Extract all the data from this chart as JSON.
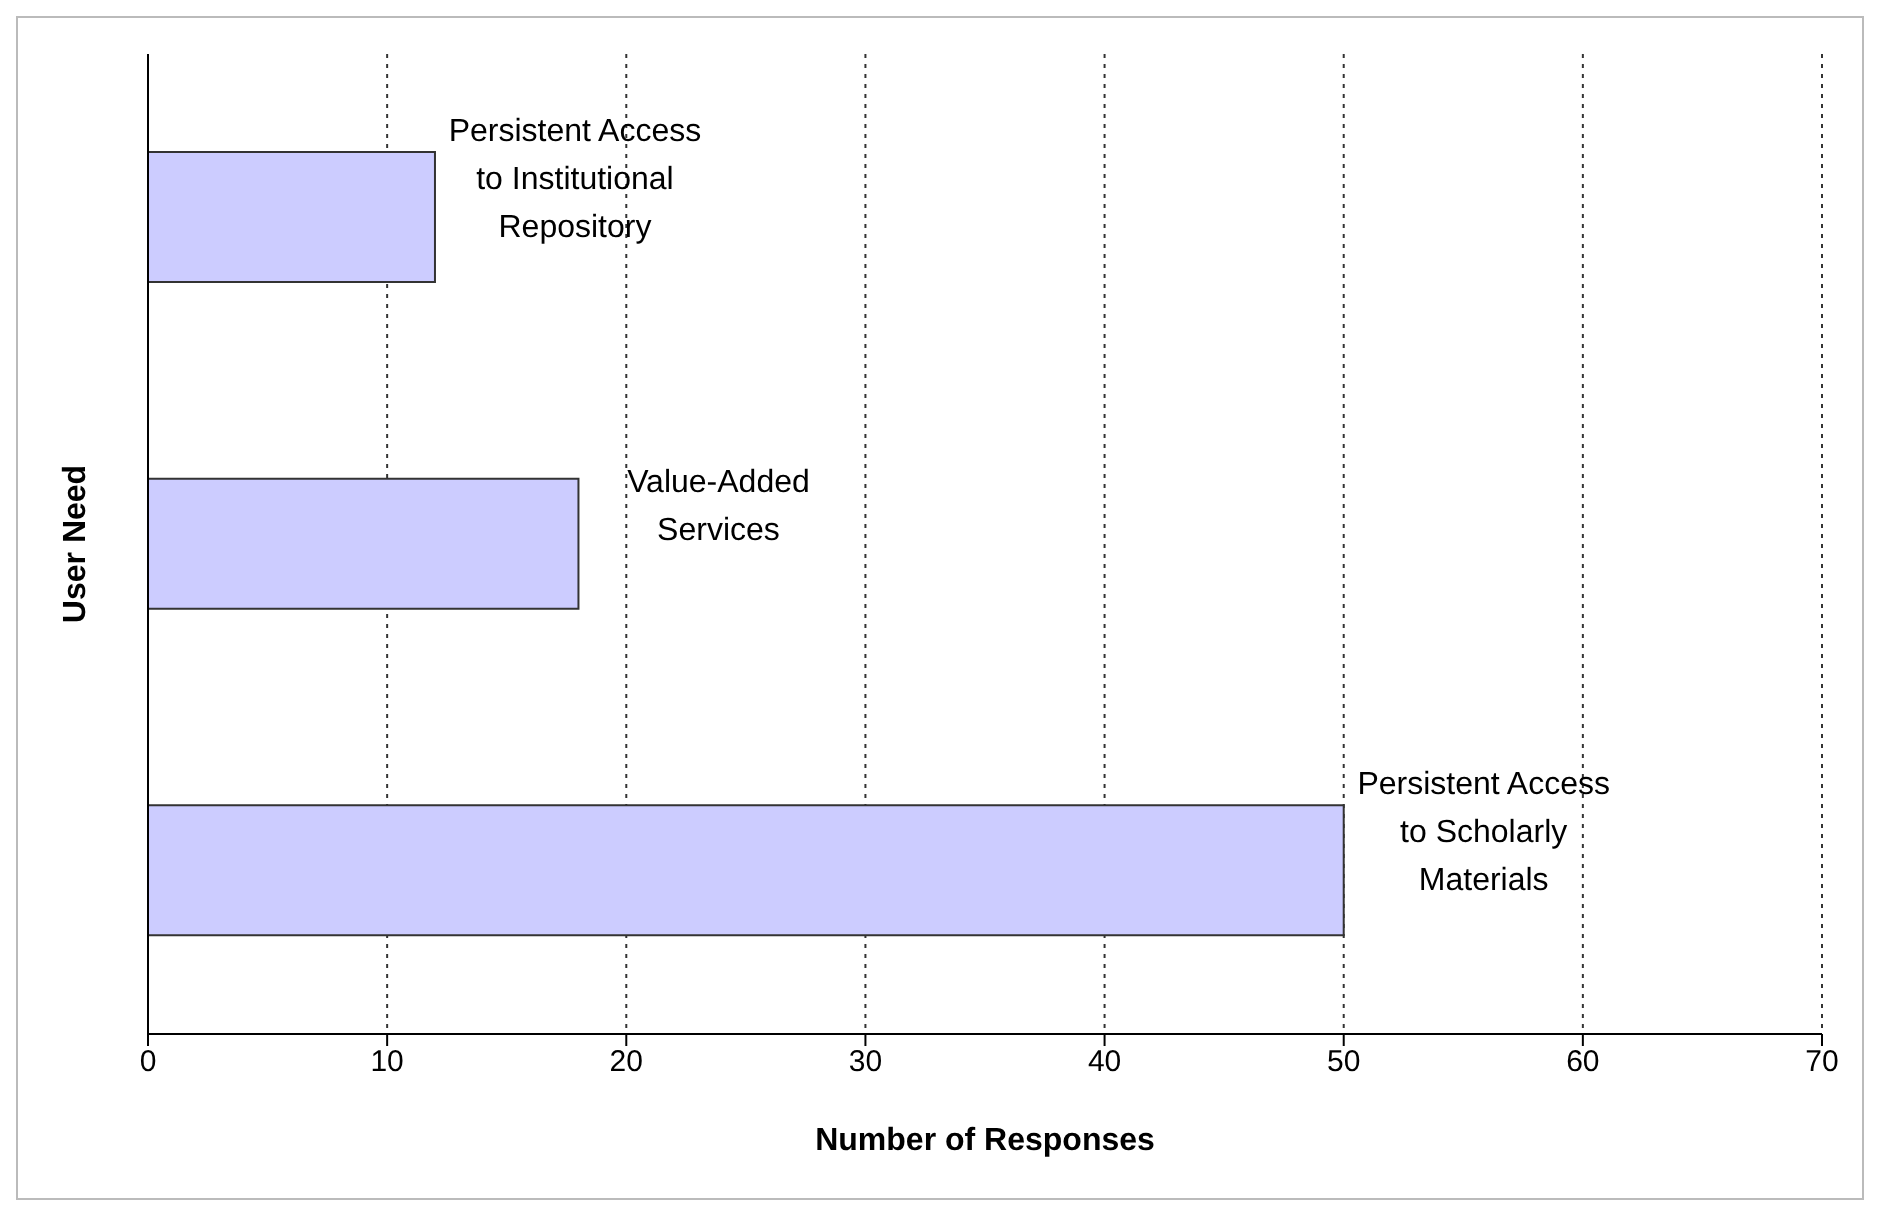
{
  "chart_data": {
    "type": "bar",
    "orientation": "horizontal",
    "xlabel": "Number of Responses",
    "ylabel": "User Need",
    "categories": [
      "Persistent Access to Institutional Repository",
      "Value-Added Services",
      "Persistent Access to Scholarly Materials"
    ],
    "values": [
      12,
      18,
      50
    ],
    "color": "#ccccff",
    "xlim": [
      0,
      70
    ],
    "xticks": [
      0,
      10,
      20,
      30,
      40,
      50,
      60,
      70
    ],
    "grid": "x",
    "tick_labels": "x"
  }
}
